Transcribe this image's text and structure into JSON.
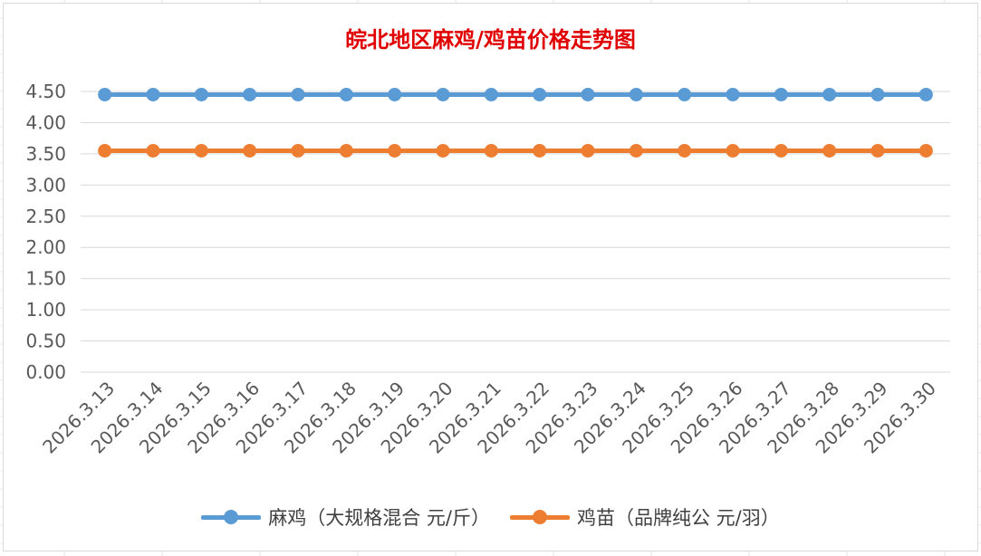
{
  "chart_data": {
    "type": "line",
    "title": "皖北地区麻鸡/鸡苗价格走势图",
    "categories": [
      "2026.3.13",
      "2026.3.14",
      "2026.3.15",
      "2026.3.16",
      "2026.3.17",
      "2026.3.18",
      "2026.3.19",
      "2026.3.20",
      "2026.3.21",
      "2026.3.22",
      "2026.3.23",
      "2026.3.24",
      "2026.3.25",
      "2026.3.26",
      "2026.3.27",
      "2026.3.28",
      "2026.3.29",
      "2026.3.30"
    ],
    "yticks": [
      "0.00",
      "0.50",
      "1.00",
      "1.50",
      "2.00",
      "2.50",
      "3.00",
      "3.50",
      "4.00",
      "4.50"
    ],
    "ylim": [
      0,
      4.5
    ],
    "grid": true,
    "legend_position": "bottom",
    "series": [
      {
        "name": "麻鸡（大规格混合 元/斤）",
        "color": "#5b9bd5",
        "values": [
          4.45,
          4.45,
          4.45,
          4.45,
          4.45,
          4.45,
          4.45,
          4.45,
          4.45,
          4.45,
          4.45,
          4.45,
          4.45,
          4.45,
          4.45,
          4.45,
          4.45,
          4.45
        ]
      },
      {
        "name": "鸡苗（品牌纯公 元/羽）",
        "color": "#ed7d31",
        "values": [
          3.55,
          3.55,
          3.55,
          3.55,
          3.55,
          3.55,
          3.55,
          3.55,
          3.55,
          3.55,
          3.55,
          3.55,
          3.55,
          3.55,
          3.55,
          3.55,
          3.55,
          3.55
        ]
      }
    ]
  }
}
